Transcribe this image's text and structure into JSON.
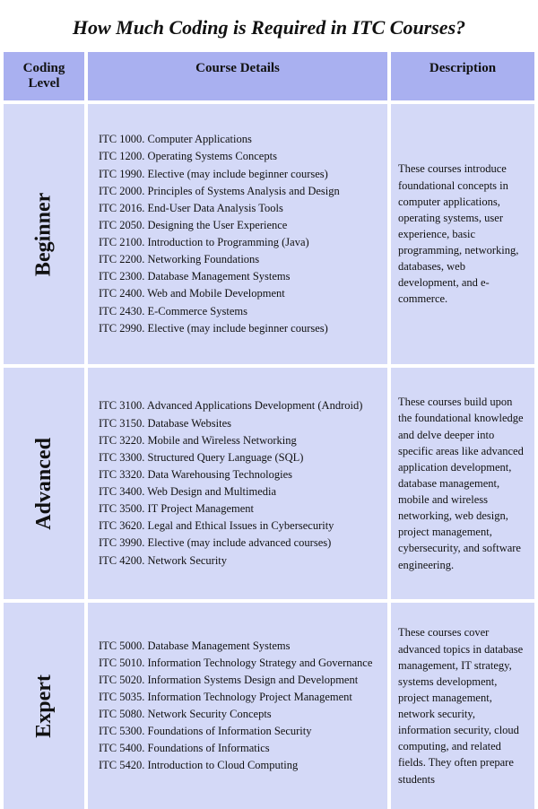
{
  "title": "How Much Coding is Required in ITC Courses?",
  "header": {
    "level": "Coding Level",
    "details": "Course Details",
    "description": "Description"
  },
  "rows": [
    {
      "level": "Beginner",
      "courses": [
        "ITC 1000. Computer Applications",
        "ITC 1200. Operating Systems Concepts",
        "ITC 1990. Elective (may include beginner courses)",
        "ITC 2000. Principles of Systems Analysis and Design",
        "ITC 2016. End-User Data Analysis Tools",
        "ITC 2050. Designing the User Experience",
        "ITC 2100. Introduction to Programming (Java)",
        "ITC 2200. Networking Foundations",
        "ITC 2300. Database Management Systems",
        "ITC 2400. Web and Mobile Development",
        "ITC 2430. E-Commerce Systems",
        "ITC 2990. Elective (may include beginner courses)"
      ],
      "description": "These courses introduce foundational concepts in computer applications, operating systems, user experience, basic programming, networking, databases, web development, and e-commerce."
    },
    {
      "level": "Advanced",
      "courses": [
        "ITC 3100. Advanced Applications Development (Android)",
        "ITC 3150. Database Websites",
        "ITC 3220. Mobile and Wireless Networking",
        "ITC 3300. Structured Query Language (SQL)",
        "ITC 3320. Data Warehousing Technologies",
        "ITC 3400. Web Design and Multimedia",
        "ITC 3500. IT Project Management",
        "ITC 3620. Legal and Ethical Issues in Cybersecurity",
        "ITC 3990. Elective (may include advanced courses)",
        "ITC 4200. Network Security"
      ],
      "description": "These courses build upon the foundational knowledge and delve deeper into specific areas like advanced application development, database management, mobile and wireless networking, web design, project management, cybersecurity, and software engineering."
    },
    {
      "level": "Expert",
      "courses": [
        "ITC 5000. Database Management Systems",
        "ITC 5010. Information Technology Strategy and Governance",
        "ITC 5020. Information Systems Design and Development",
        "ITC 5035. Information Technology Project Management",
        "ITC 5080. Network Security Concepts",
        "ITC 5300. Foundations of Information Security",
        "ITC 5400. Foundations of Informatics",
        "ITC 5420. Introduction to Cloud Computing"
      ],
      "description": "These courses cover advanced topics in database management, IT strategy, systems development, project management, network security, information security, cloud computing, and related fields. They often prepare students"
    }
  ],
  "colors": {
    "header_bg": "#a9b0f0",
    "cell_bg": "#d4d9f7",
    "text": "#111111"
  }
}
